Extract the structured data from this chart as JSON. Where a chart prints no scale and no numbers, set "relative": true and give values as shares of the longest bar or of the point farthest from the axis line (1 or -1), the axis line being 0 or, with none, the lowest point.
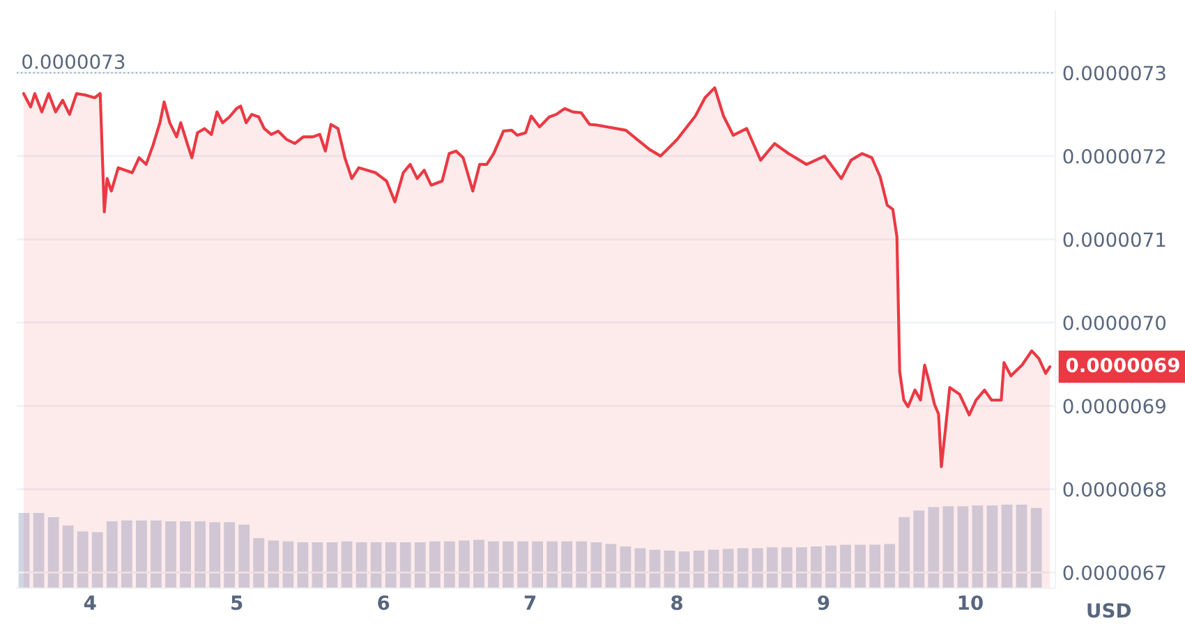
{
  "chart_data": [
    {
      "type": "area",
      "xlim": [
        3.5,
        10.58
      ],
      "ylim": [
        6.681e-06,
        7.374e-06
      ],
      "xticks": [
        4,
        5,
        6,
        7,
        8,
        9,
        10
      ],
      "yticks": [
        {
          "value": 6.7e-06,
          "label": "0.0000067"
        },
        {
          "value": 6.8e-06,
          "label": "0.0000068"
        },
        {
          "value": 6.9e-06,
          "label": "0.0000069"
        },
        {
          "value": 7e-06,
          "label": "0.0000070"
        },
        {
          "value": 7.1e-06,
          "label": "0.0000071"
        },
        {
          "value": 7.2e-06,
          "label": "0.0000072"
        },
        {
          "value": 7.3e-06,
          "label": "0.0000073"
        }
      ],
      "grid": "y",
      "ref_lines": [
        {
          "axis": "y",
          "value": 7.3e-06,
          "label": "0.0000073",
          "color": "#a6b0c3",
          "line_style": "dotted"
        }
      ],
      "annotations": [
        {
          "text": "0.0000069",
          "x": 10.543,
          "y": 6.947e-06
        },
        "USD"
      ],
      "series": [
        {
          "color": "#ea3943",
          "x": [
            3.547,
            3.595,
            3.623,
            3.671,
            3.718,
            3.765,
            3.813,
            3.86,
            3.908,
            3.974,
            4.031,
            4.069,
            4.097,
            4.116,
            4.145,
            4.192,
            4.239,
            4.287,
            4.334,
            4.382,
            4.429,
            4.476,
            4.505,
            4.543,
            4.59,
            4.618,
            4.666,
            4.694,
            4.732,
            4.78,
            4.827,
            4.865,
            4.903,
            4.95,
            4.998,
            5.026,
            5.064,
            5.102,
            5.149,
            5.187,
            5.235,
            5.282,
            5.339,
            5.396,
            5.453,
            5.519,
            5.566,
            5.604,
            5.642,
            5.69,
            5.737,
            5.784,
            5.832,
            5.889,
            5.945,
            6.021,
            6.078,
            6.135,
            6.182,
            6.23,
            6.277,
            6.325,
            6.4,
            6.448,
            6.495,
            6.543,
            6.609,
            6.656,
            6.704,
            6.751,
            6.818,
            6.874,
            6.912,
            6.969,
            7.007,
            7.064,
            7.13,
            7.178,
            7.235,
            7.292,
            7.348,
            7.405,
            7.462,
            7.652,
            7.813,
            7.889,
            8.002,
            8.126,
            8.192,
            8.258,
            8.318,
            8.384,
            8.476,
            8.571,
            8.666,
            8.761,
            8.884,
            9.007,
            9.121,
            9.187,
            9.263,
            9.329,
            9.386,
            9.434,
            9.472,
            9.5,
            9.519,
            9.547,
            9.576,
            9.623,
            9.661,
            9.689,
            9.718,
            9.756,
            9.784,
            9.803,
            9.832,
            9.86,
            9.927,
            9.993,
            10.04,
            10.097,
            10.145,
            10.211,
            10.23,
            10.277,
            10.353,
            10.419,
            10.467,
            10.514,
            10.543
          ],
          "values": [
            7.275e-06,
            7.259e-06,
            7.275e-06,
            7.253e-06,
            7.275e-06,
            7.253e-06,
            7.267e-06,
            7.25e-06,
            7.275e-06,
            7.273e-06,
            7.27e-06,
            7.275e-06,
            7.133e-06,
            7.173e-06,
            7.158e-06,
            7.186e-06,
            7.183e-06,
            7.18e-06,
            7.198e-06,
            7.19e-06,
            7.213e-06,
            7.24e-06,
            7.265e-06,
            7.24e-06,
            7.223e-06,
            7.24e-06,
            7.213e-06,
            7.198e-06,
            7.228e-06,
            7.233e-06,
            7.226e-06,
            7.253e-06,
            7.24e-06,
            7.247e-06,
            7.257e-06,
            7.26e-06,
            7.24e-06,
            7.25e-06,
            7.247e-06,
            7.233e-06,
            7.226e-06,
            7.23e-06,
            7.22e-06,
            7.215e-06,
            7.223e-06,
            7.223e-06,
            7.226e-06,
            7.206e-06,
            7.238e-06,
            7.233e-06,
            7.198e-06,
            7.173e-06,
            7.186e-06,
            7.183e-06,
            7.18e-06,
            7.17e-06,
            7.145e-06,
            7.18e-06,
            7.19e-06,
            7.173e-06,
            7.183e-06,
            7.165e-06,
            7.17e-06,
            7.203e-06,
            7.206e-06,
            7.198e-06,
            7.158e-06,
            7.19e-06,
            7.19e-06,
            7.203e-06,
            7.23e-06,
            7.231e-06,
            7.225e-06,
            7.228e-06,
            7.248e-06,
            7.235e-06,
            7.247e-06,
            7.25e-06,
            7.257e-06,
            7.253e-06,
            7.252e-06,
            7.238e-06,
            7.237e-06,
            7.231e-06,
            7.208e-06,
            7.2e-06,
            7.22e-06,
            7.248e-06,
            7.27e-06,
            7.282e-06,
            7.248e-06,
            7.225e-06,
            7.233e-06,
            7.195e-06,
            7.215e-06,
            7.203e-06,
            7.19e-06,
            7.2e-06,
            7.173e-06,
            7.195e-06,
            7.203e-06,
            7.198e-06,
            7.175e-06,
            7.141e-06,
            7.136e-06,
            7.103e-06,
            6.941e-06,
            6.907e-06,
            6.899e-06,
            6.919e-06,
            6.907e-06,
            6.949e-06,
            6.93e-06,
            6.902e-06,
            6.89e-06,
            6.827e-06,
            6.874e-06,
            6.922e-06,
            6.914e-06,
            6.889e-06,
            6.907e-06,
            6.919e-06,
            6.907e-06,
            6.907e-06,
            6.952e-06,
            6.936e-06,
            6.949e-06,
            6.966e-06,
            6.957e-06,
            6.939e-06,
            6.947e-06
          ]
        }
      ]
    },
    {
      "type": "bar",
      "relative": true,
      "tick_labels": false,
      "xlim": [
        3.5,
        10.58
      ],
      "series": [
        {
          "color": "#cfd6e4",
          "x": [
            3.55,
            3.65,
            3.75,
            3.85,
            3.95,
            4.05,
            4.15,
            4.25,
            4.35,
            4.45,
            4.55,
            4.65,
            4.75,
            4.85,
            4.95,
            5.05,
            5.15,
            5.25,
            5.35,
            5.45,
            5.55,
            5.65,
            5.75,
            5.85,
            5.95,
            6.05,
            6.15,
            6.25,
            6.35,
            6.45,
            6.55,
            6.65,
            6.75,
            6.85,
            6.95,
            7.05,
            7.15,
            7.25,
            7.35,
            7.45,
            7.55,
            7.65,
            7.75,
            7.85,
            7.95,
            8.05,
            8.15,
            8.25,
            8.35,
            8.45,
            8.55,
            8.65,
            8.75,
            8.85,
            8.95,
            9.05,
            9.15,
            9.25,
            9.35,
            9.45,
            9.55,
            9.65,
            9.75,
            9.85,
            9.95,
            10.05,
            10.15,
            10.25,
            10.35,
            10.45
          ],
          "values": [
            0.9,
            0.9,
            0.85,
            0.75,
            0.68,
            0.67,
            0.8,
            0.81,
            0.81,
            0.81,
            0.8,
            0.8,
            0.8,
            0.79,
            0.79,
            0.76,
            0.6,
            0.57,
            0.56,
            0.55,
            0.55,
            0.55,
            0.56,
            0.55,
            0.55,
            0.55,
            0.55,
            0.55,
            0.56,
            0.56,
            0.57,
            0.58,
            0.56,
            0.56,
            0.56,
            0.56,
            0.56,
            0.56,
            0.56,
            0.55,
            0.53,
            0.5,
            0.48,
            0.46,
            0.45,
            0.44,
            0.45,
            0.46,
            0.47,
            0.48,
            0.48,
            0.49,
            0.49,
            0.49,
            0.5,
            0.51,
            0.52,
            0.52,
            0.52,
            0.53,
            0.85,
            0.93,
            0.97,
            0.98,
            0.98,
            0.99,
            0.99,
            1.0,
            1.0,
            0.96
          ]
        }
      ]
    }
  ]
}
